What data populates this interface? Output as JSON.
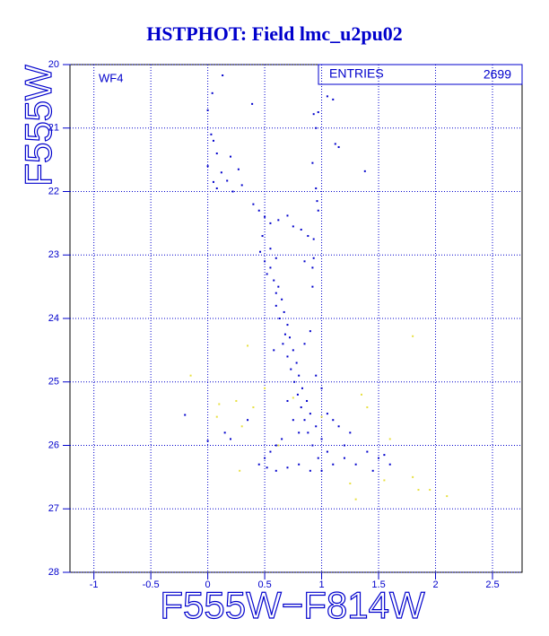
{
  "chart_data": {
    "type": "scatter",
    "title": "HSTPHOT: Field lmc_u2pu02",
    "x_label": "F555W−F814W",
    "y_label": "F555W",
    "annotations": {
      "panel": "WF4",
      "stat_name": "ENTRIES",
      "stat_value": "2699"
    },
    "xlim": [
      -1.21,
      2.76
    ],
    "ylim": [
      20,
      28
    ],
    "y_inverted": true,
    "xticks": [
      -1,
      -0.5,
      0,
      0.5,
      1,
      1.5,
      2,
      2.5
    ],
    "yticks": [
      20,
      21,
      22,
      23,
      24,
      25,
      26,
      27,
      28
    ],
    "grid": true,
    "series": [
      {
        "color": "#0000cc",
        "x": [
          0.13,
          0.04,
          0.0,
          0.39,
          0.93,
          0.97,
          1.05,
          1.1,
          0.95,
          1.12,
          1.15,
          0.03,
          0.05,
          0.08,
          0.2,
          0.0,
          0.12,
          0.17,
          0.27,
          0.3,
          0.08,
          0.05,
          0.22,
          0.92,
          0.95,
          1.38,
          0.96,
          0.4,
          0.45,
          0.5,
          0.55,
          0.62,
          0.7,
          0.75,
          0.82,
          0.88,
          0.93,
          0.97,
          0.93,
          0.92,
          0.48,
          0.46,
          0.5,
          0.52,
          0.55,
          0.58,
          0.6,
          0.62,
          0.65,
          0.6,
          0.67,
          0.63,
          0.7,
          0.68,
          0.72,
          0.66,
          0.75,
          0.7,
          0.78,
          0.73,
          0.8,
          0.76,
          0.83,
          0.79,
          0.87,
          0.82,
          0.9,
          0.85,
          0.95,
          0.88,
          1.0,
          0.92,
          1.05,
          0.97,
          1.1,
          1.0,
          0.95,
          0.7,
          0.75,
          0.8,
          0.65,
          0.6,
          0.55,
          0.5,
          0.52,
          0.6,
          0.7,
          0.8,
          0.9,
          1.0,
          1.2,
          1.3,
          1.4,
          1.5,
          1.55,
          1.6,
          1.25,
          1.15,
          1.1,
          1.05,
          1.2,
          0.58,
          0.85,
          0.9,
          -0.2,
          0.0,
          0.15,
          0.35,
          0.2,
          0.45,
          1.45,
          0.85,
          0.92,
          0.6,
          0.55
        ],
        "values": [
          20.17,
          20.45,
          20.72,
          20.62,
          20.78,
          20.75,
          20.5,
          20.55,
          21.0,
          21.25,
          21.3,
          21.1,
          21.2,
          21.4,
          21.45,
          21.6,
          21.7,
          21.83,
          21.65,
          21.9,
          21.95,
          21.85,
          22.0,
          21.55,
          21.95,
          21.68,
          22.15,
          22.2,
          22.3,
          22.4,
          22.5,
          22.45,
          22.38,
          22.55,
          22.6,
          22.7,
          22.75,
          22.3,
          23.05,
          23.2,
          22.7,
          22.95,
          23.1,
          23.3,
          23.2,
          23.4,
          23.6,
          23.5,
          23.7,
          23.8,
          23.9,
          24.0,
          24.1,
          24.25,
          24.3,
          24.4,
          24.5,
          24.6,
          24.7,
          24.8,
          24.9,
          25.0,
          25.1,
          25.2,
          25.3,
          25.4,
          25.5,
          25.6,
          25.7,
          25.8,
          25.9,
          26.0,
          26.1,
          26.2,
          26.3,
          25.1,
          24.9,
          25.3,
          25.6,
          25.8,
          25.9,
          26.0,
          26.1,
          26.2,
          26.35,
          26.4,
          26.35,
          26.3,
          26.4,
          26.4,
          26.2,
          26.3,
          26.1,
          26.2,
          26.15,
          26.3,
          25.8,
          25.7,
          25.6,
          25.5,
          26.0,
          24.5,
          24.4,
          24.2,
          25.52,
          25.93,
          25.8,
          25.6,
          25.9,
          26.3,
          26.4,
          23.1,
          23.5,
          23.05,
          22.9
        ]
      },
      {
        "color": "#e8e040",
        "x": [
          -0.15,
          0.35,
          1.8,
          0.1,
          0.25,
          0.4,
          0.3,
          0.08,
          0.5,
          1.35,
          1.4,
          1.0,
          1.6,
          1.25,
          1.55,
          1.8,
          1.85,
          1.95,
          2.1,
          0.28,
          1.3,
          0.62,
          0.75
        ],
        "values": [
          24.9,
          24.43,
          24.28,
          25.35,
          25.3,
          25.4,
          25.7,
          25.55,
          25.1,
          25.2,
          25.4,
          25.55,
          25.9,
          26.6,
          26.55,
          26.5,
          26.7,
          26.7,
          26.8,
          26.4,
          26.85,
          26.0,
          25.25
        ]
      }
    ]
  }
}
